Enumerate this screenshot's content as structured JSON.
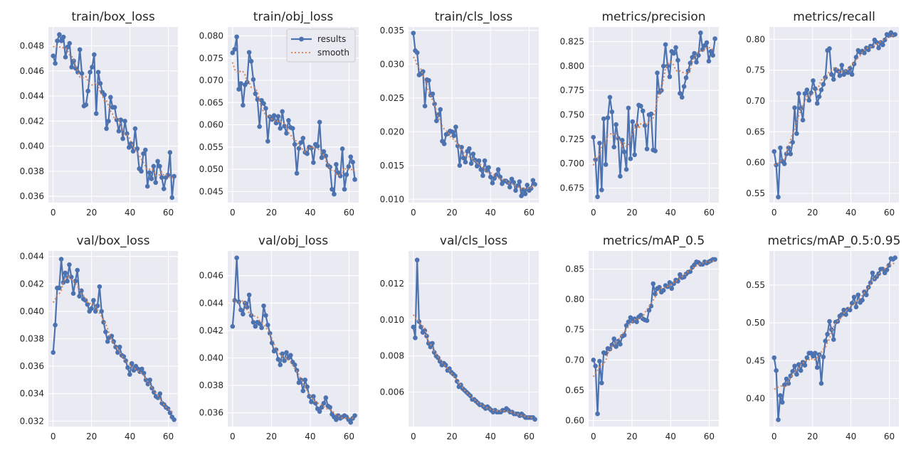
{
  "figure": {
    "background": "#ffffff",
    "axes_background": "#eaeaf2",
    "grid_color": "#ffffff"
  },
  "colors": {
    "results": "#4c72b0",
    "smooth": "#dd8452"
  },
  "legend": {
    "entries": [
      "results",
      "smooth"
    ],
    "location": "upper-right of train/obj_loss"
  },
  "chart_data": [
    {
      "type": "line",
      "title": "train/box_loss",
      "xlim": [
        -2.5,
        65
      ],
      "ylim": [
        0.0355,
        0.0495
      ],
      "xticks": [
        0,
        20,
        40,
        60
      ],
      "xtick_labels": [
        "0",
        "20",
        "40",
        "60"
      ],
      "yticks": [
        0.036,
        0.038,
        0.04,
        0.042,
        0.044,
        0.046,
        0.048
      ],
      "ytick_labels": [
        "0.036",
        "0.038",
        "0.040",
        "0.042",
        "0.044",
        "0.046",
        "0.048"
      ],
      "series": [
        {
          "name": "results",
          "values": [
            0.0472,
            0.0466,
            0.0484,
            0.0489,
            0.0484,
            0.0487,
            0.0471,
            0.0479,
            0.0482,
            0.0463,
            0.0468,
            0.0462,
            0.0459,
            0.0477,
            0.0458,
            0.0432,
            0.0433,
            0.0444,
            0.0459,
            0.0463,
            0.0473,
            0.0426,
            0.0459,
            0.045,
            0.0443,
            0.0441,
            0.0414,
            0.042,
            0.0439,
            0.0431,
            0.0431,
            0.0421,
            0.0412,
            0.0421,
            0.0406,
            0.042,
            0.041,
            0.0399,
            0.0402,
            0.0396,
            0.0414,
            0.0398,
            0.0382,
            0.038,
            0.0394,
            0.0397,
            0.0368,
            0.0379,
            0.0374,
            0.0384,
            0.0371,
            0.0388,
            0.0384,
            0.0375,
            0.0366,
            0.0375,
            0.0377,
            0.0395,
            0.0359,
            0.0376
          ]
        },
        {
          "name": "smooth"
        }
      ]
    },
    {
      "type": "line",
      "title": "train/obj_loss",
      "xlim": [
        -2.5,
        65
      ],
      "ylim": [
        0.0425,
        0.082
      ],
      "xticks": [
        0,
        20,
        40,
        60
      ],
      "xtick_labels": [
        "0",
        "20",
        "40",
        "60"
      ],
      "yticks": [
        0.045,
        0.05,
        0.055,
        0.06,
        0.065,
        0.07,
        0.075,
        0.08
      ],
      "ytick_labels": [
        "0.045",
        "0.050",
        "0.055",
        "0.060",
        "0.065",
        "0.070",
        "0.075",
        "0.080"
      ],
      "series": [
        {
          "name": "results",
          "values": [
            0.0762,
            0.077,
            0.0798,
            0.068,
            0.0693,
            0.0644,
            0.069,
            0.0696,
            0.0763,
            0.0743,
            0.0702,
            0.067,
            0.0657,
            0.0596,
            0.0655,
            0.0648,
            0.0637,
            0.0563,
            0.0618,
            0.0612,
            0.0621,
            0.0604,
            0.0619,
            0.0592,
            0.063,
            0.0597,
            0.0581,
            0.061,
            0.0594,
            0.0592,
            0.0556,
            0.0491,
            0.0547,
            0.056,
            0.057,
            0.0538,
            0.0535,
            0.055,
            0.0548,
            0.0515,
            0.0556,
            0.0552,
            0.0606,
            0.0526,
            0.054,
            0.053,
            0.0509,
            0.0505,
            0.0455,
            0.0444,
            0.0511,
            0.0492,
            0.0485,
            0.0546,
            0.0455,
            0.0488,
            0.0506,
            0.0528,
            0.0516,
            0.0477
          ]
        },
        {
          "name": "smooth"
        }
      ]
    },
    {
      "type": "line",
      "title": "train/cls_loss",
      "xlim": [
        -2.5,
        65
      ],
      "ylim": [
        0.0095,
        0.0355
      ],
      "xticks": [
        0,
        20,
        40,
        60
      ],
      "xtick_labels": [
        "0",
        "20",
        "40",
        "60"
      ],
      "yticks": [
        0.01,
        0.015,
        0.02,
        0.025,
        0.03,
        0.035
      ],
      "ytick_labels": [
        "0.010",
        "0.015",
        "0.020",
        "0.025",
        "0.030",
        "0.035"
      ],
      "series": [
        {
          "name": "results",
          "values": [
            0.0346,
            0.032,
            0.0317,
            0.0284,
            0.0286,
            0.0289,
            0.0238,
            0.0277,
            0.0276,
            0.0254,
            0.0256,
            0.0241,
            0.0216,
            0.0225,
            0.0233,
            0.0186,
            0.0182,
            0.0196,
            0.0197,
            0.0201,
            0.02,
            0.0194,
            0.0207,
            0.0179,
            0.015,
            0.0177,
            0.0161,
            0.0155,
            0.0171,
            0.0175,
            0.0153,
            0.0167,
            0.0158,
            0.0149,
            0.0157,
            0.0144,
            0.0135,
            0.0157,
            0.0143,
            0.0147,
            0.0133,
            0.0124,
            0.0131,
            0.0136,
            0.0144,
            0.0133,
            0.0123,
            0.0127,
            0.0127,
            0.0125,
            0.0118,
            0.013,
            0.0125,
            0.0113,
            0.012,
            0.0126,
            0.0105,
            0.0114,
            0.0108,
            0.0121,
            0.0113,
            0.0116,
            0.0128,
            0.0122
          ]
        },
        {
          "name": "smooth"
        }
      ]
    },
    {
      "type": "line",
      "title": "metrics/precision",
      "xlim": [
        -2.5,
        65
      ],
      "ylim": [
        0.66,
        0.84
      ],
      "xticks": [
        0,
        20,
        40,
        60
      ],
      "xtick_labels": [
        "0",
        "20",
        "40",
        "60"
      ],
      "yticks": [
        0.675,
        0.7,
        0.725,
        0.75,
        0.775,
        0.8,
        0.825
      ],
      "ytick_labels": [
        "0.675",
        "0.700",
        "0.725",
        "0.750",
        "0.775",
        "0.800",
        "0.825"
      ],
      "series": [
        {
          "name": "results",
          "values": [
            0.727,
            0.704,
            0.666,
            0.721,
            0.673,
            0.746,
            0.699,
            0.747,
            0.768,
            0.753,
            0.717,
            0.74,
            0.726,
            0.687,
            0.724,
            0.712,
            0.694,
            0.757,
            0.705,
            0.743,
            0.709,
            0.739,
            0.76,
            0.759,
            0.754,
            0.739,
            0.715,
            0.75,
            0.751,
            0.714,
            0.713,
            0.793,
            0.773,
            0.775,
            0.8,
            0.822,
            0.8,
            0.789,
            0.815,
            0.813,
            0.819,
            0.806,
            0.772,
            0.768,
            0.779,
            0.788,
            0.795,
            0.803,
            0.809,
            0.813,
            0.804,
            0.811,
            0.834,
            0.817,
            0.821,
            0.824,
            0.805,
            0.815,
            0.811,
            0.828
          ]
        },
        {
          "name": "smooth"
        }
      ]
    },
    {
      "type": "line",
      "title": "metrics/recall",
      "xlim": [
        -2.5,
        65
      ],
      "ylim": [
        0.535,
        0.82
      ],
      "xticks": [
        0,
        20,
        40,
        60
      ],
      "xtick_labels": [
        "0",
        "20",
        "40",
        "60"
      ],
      "yticks": [
        0.55,
        0.6,
        0.65,
        0.7,
        0.75,
        0.8
      ],
      "ytick_labels": [
        "0.55",
        "0.60",
        "0.65",
        "0.70",
        "0.75",
        "0.80"
      ],
      "series": [
        {
          "name": "results",
          "values": [
            0.618,
            0.596,
            0.544,
            0.624,
            0.602,
            0.598,
            0.614,
            0.624,
            0.614,
            0.633,
            0.689,
            0.647,
            0.712,
            0.688,
            0.669,
            0.712,
            0.718,
            0.701,
            0.713,
            0.733,
            0.72,
            0.696,
            0.707,
            0.718,
            0.727,
            0.738,
            0.782,
            0.785,
            0.743,
            0.735,
            0.751,
            0.749,
            0.741,
            0.758,
            0.743,
            0.748,
            0.746,
            0.753,
            0.743,
            0.76,
            0.771,
            0.782,
            0.779,
            0.781,
            0.778,
            0.786,
            0.783,
            0.789,
            0.789,
            0.799,
            0.795,
            0.786,
            0.795,
            0.791,
            0.799,
            0.808,
            0.806,
            0.811,
            0.807,
            0.808
          ]
        },
        {
          "name": "smooth"
        }
      ]
    },
    {
      "type": "line",
      "title": "val/box_loss",
      "xlim": [
        -2.5,
        65
      ],
      "ylim": [
        0.0316,
        0.0444
      ],
      "xticks": [
        0,
        20,
        40,
        60
      ],
      "xtick_labels": [
        "0",
        "20",
        "40",
        "60"
      ],
      "yticks": [
        0.032,
        0.034,
        0.036,
        0.038,
        0.04,
        0.042,
        0.044
      ],
      "ytick_labels": [
        "0.032",
        "0.034",
        "0.036",
        "0.038",
        "0.040",
        "0.042",
        "0.044"
      ],
      "series": [
        {
          "name": "results",
          "values": [
            0.037,
            0.039,
            0.0417,
            0.0417,
            0.0438,
            0.0421,
            0.0428,
            0.0422,
            0.0434,
            0.0425,
            0.0413,
            0.0422,
            0.043,
            0.0411,
            0.0415,
            0.0409,
            0.0408,
            0.0405,
            0.04,
            0.0402,
            0.0408,
            0.04,
            0.0404,
            0.0418,
            0.04,
            0.0392,
            0.0385,
            0.0378,
            0.0381,
            0.0382,
            0.0378,
            0.0374,
            0.037,
            0.0374,
            0.0368,
            0.0367,
            0.0364,
            0.0359,
            0.0354,
            0.0362,
            0.0357,
            0.036,
            0.0358,
            0.0356,
            0.0358,
            0.0355,
            0.035,
            0.0347,
            0.035,
            0.0344,
            0.0341,
            0.0338,
            0.0337,
            0.034,
            0.0333,
            0.0332,
            0.033,
            0.0329,
            0.0326,
            0.0323,
            0.0321
          ]
        },
        {
          "name": "smooth"
        }
      ]
    },
    {
      "type": "line",
      "title": "val/obj_loss",
      "xlim": [
        -2.5,
        65
      ],
      "ylim": [
        0.035,
        0.0478
      ],
      "xticks": [
        0,
        20,
        40,
        60
      ],
      "xtick_labels": [
        "0",
        "20",
        "40",
        "60"
      ],
      "yticks": [
        0.036,
        0.038,
        0.04,
        0.042,
        0.044,
        0.046
      ],
      "ytick_labels": [
        "0.036",
        "0.038",
        "0.040",
        "0.042",
        "0.044",
        "0.046"
      ],
      "series": [
        {
          "name": "results",
          "values": [
            0.0423,
            0.0442,
            0.0473,
            0.0441,
            0.0435,
            0.0432,
            0.044,
            0.0437,
            0.0446,
            0.0431,
            0.0426,
            0.0423,
            0.0426,
            0.0425,
            0.0422,
            0.0438,
            0.0431,
            0.0424,
            0.0418,
            0.0411,
            0.0405,
            0.0406,
            0.0399,
            0.0395,
            0.0403,
            0.0398,
            0.0404,
            0.04,
            0.0402,
            0.0397,
            0.0395,
            0.0391,
            0.0382,
            0.0384,
            0.0376,
            0.0384,
            0.0379,
            0.0372,
            0.0368,
            0.0372,
            0.0367,
            0.0363,
            0.0361,
            0.0364,
            0.0367,
            0.0371,
            0.0365,
            0.0364,
            0.0359,
            0.0357,
            0.0355,
            0.0358,
            0.0356,
            0.0357,
            0.0358,
            0.0357,
            0.0355,
            0.0353,
            0.0356,
            0.0358
          ]
        },
        {
          "name": "smooth"
        }
      ]
    },
    {
      "type": "line",
      "title": "val/cls_loss",
      "xlim": [
        -2.5,
        65
      ],
      "ylim": [
        0.0041,
        0.0138
      ],
      "xticks": [
        0,
        20,
        40,
        60
      ],
      "xtick_labels": [
        "0",
        "20",
        "40",
        "60"
      ],
      "yticks": [
        0.006,
        0.008,
        0.01,
        0.012
      ],
      "ytick_labels": [
        "0.006",
        "0.008",
        "0.010",
        "0.012"
      ],
      "series": [
        {
          "name": "results",
          "values": [
            0.0096,
            0.009,
            0.0133,
            0.0099,
            0.0096,
            0.0093,
            0.0094,
            0.0091,
            0.0087,
            0.0085,
            0.0087,
            0.0082,
            0.008,
            0.0079,
            0.0077,
            0.0075,
            0.0076,
            0.0075,
            0.0072,
            0.0073,
            0.0071,
            0.007,
            0.0069,
            0.0066,
            0.0063,
            0.0064,
            0.0062,
            0.0061,
            0.006,
            0.0059,
            0.0058,
            0.0056,
            0.0056,
            0.0055,
            0.0054,
            0.0053,
            0.0053,
            0.0052,
            0.0051,
            0.0052,
            0.0051,
            0.005,
            0.0049,
            0.005,
            0.0049,
            0.0049,
            0.0049,
            0.005,
            0.005,
            0.0051,
            0.005,
            0.0049,
            0.0049,
            0.0048,
            0.0048,
            0.0048,
            0.0047,
            0.0048,
            0.0047,
            0.0046,
            0.0046,
            0.0046,
            0.0046,
            0.0046,
            0.0045
          ]
        },
        {
          "name": "smooth"
        }
      ]
    },
    {
      "type": "line",
      "title": "metrics/mAP_0.5",
      "xlim": [
        -2.5,
        65
      ],
      "ylim": [
        0.59,
        0.88
      ],
      "xticks": [
        0,
        20,
        40,
        60
      ],
      "xtick_labels": [
        "0",
        "20",
        "40",
        "60"
      ],
      "yticks": [
        0.6,
        0.65,
        0.7,
        0.75,
        0.8,
        0.85
      ],
      "ytick_labels": [
        "0.60",
        "0.65",
        "0.70",
        "0.75",
        "0.80",
        "0.85"
      ],
      "series": [
        {
          "name": "results",
          "values": [
            0.7,
            0.69,
            0.611,
            0.698,
            0.662,
            0.712,
            0.711,
            0.719,
            0.718,
            0.725,
            0.735,
            0.722,
            0.731,
            0.726,
            0.739,
            0.741,
            0.757,
            0.763,
            0.77,
            0.764,
            0.768,
            0.763,
            0.771,
            0.774,
            0.768,
            0.766,
            0.765,
            0.782,
            0.789,
            0.826,
            0.809,
            0.818,
            0.82,
            0.812,
            0.815,
            0.823,
            0.821,
            0.828,
            0.818,
            0.826,
            0.832,
            0.83,
            0.841,
            0.836,
            0.837,
            0.842,
            0.845,
            0.846,
            0.853,
            0.857,
            0.862,
            0.861,
            0.858,
            0.858,
            0.862,
            0.86,
            0.862,
            0.864,
            0.866,
            0.866
          ]
        },
        {
          "name": "smooth"
        }
      ]
    },
    {
      "type": "line",
      "title": "metrics/mAP_0.5:0.95",
      "xlim": [
        -2.5,
        65
      ],
      "ylim": [
        0.363,
        0.595
      ],
      "xticks": [
        0,
        20,
        40,
        60
      ],
      "xtick_labels": [
        "0",
        "20",
        "40",
        "60"
      ],
      "yticks": [
        0.4,
        0.45,
        0.5,
        0.55
      ],
      "ytick_labels": [
        "0.40",
        "0.45",
        "0.50",
        "0.55"
      ],
      "series": [
        {
          "name": "results",
          "values": [
            0.454,
            0.437,
            0.372,
            0.404,
            0.395,
            0.418,
            0.426,
            0.42,
            0.43,
            0.436,
            0.443,
            0.432,
            0.445,
            0.437,
            0.448,
            0.444,
            0.454,
            0.46,
            0.46,
            0.456,
            0.46,
            0.441,
            0.458,
            0.42,
            0.455,
            0.476,
            0.485,
            0.502,
            0.491,
            0.478,
            0.501,
            0.502,
            0.509,
            0.511,
            0.517,
            0.511,
            0.518,
            0.517,
            0.526,
            0.534,
            0.521,
            0.537,
            0.527,
            0.53,
            0.541,
            0.537,
            0.547,
            0.553,
            0.566,
            0.558,
            0.561,
            0.565,
            0.571,
            0.571,
            0.566,
            0.57,
            0.576,
            0.585,
            0.584,
            0.586
          ]
        },
        {
          "name": "smooth"
        }
      ]
    }
  ]
}
